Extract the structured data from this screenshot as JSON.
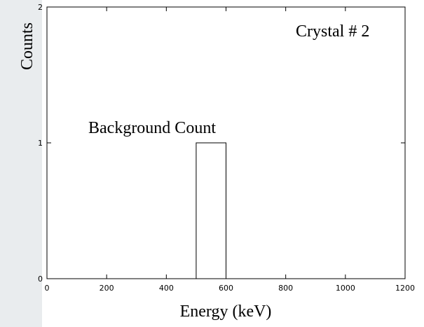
{
  "chart_data": {
    "type": "histogram",
    "bins": [
      500,
      600
    ],
    "values": [
      1
    ],
    "color": "#000000",
    "x_label": "Energy (keV)",
    "y_label": "Counts",
    "annotations": [
      "Crystal # 2",
      "Background Count"
    ],
    "xlim": [
      0,
      1200
    ],
    "xticks": [
      0,
      200,
      400,
      600,
      800,
      1000,
      1200
    ],
    "ylim": [
      0,
      2
    ],
    "yticks": [
      0,
      1,
      2
    ]
  }
}
